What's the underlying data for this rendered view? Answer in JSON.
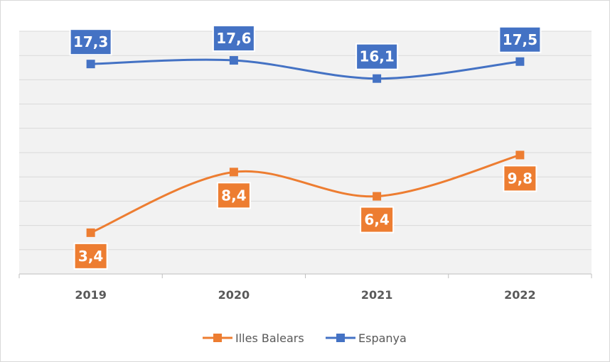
{
  "chart_data": {
    "type": "line",
    "title": "",
    "xlabel": "",
    "ylabel": "",
    "categories": [
      "2019",
      "2020",
      "2021",
      "2022"
    ],
    "ylim": [
      0,
      20
    ],
    "grid": true,
    "legend_position": "bottom",
    "series": [
      {
        "name": "Illes Balears",
        "color": "#ED7D31",
        "values": [
          3.4,
          8.4,
          6.4,
          9.8
        ],
        "labels": [
          "3,4",
          "8,4",
          "6,4",
          "9,8"
        ],
        "label_position": "below"
      },
      {
        "name": "Espanya",
        "color": "#4472C4",
        "values": [
          17.3,
          17.6,
          16.1,
          17.5
        ],
        "labels": [
          "17,3",
          "17,6",
          "16,1",
          "17,5"
        ],
        "label_position": "above"
      }
    ]
  }
}
